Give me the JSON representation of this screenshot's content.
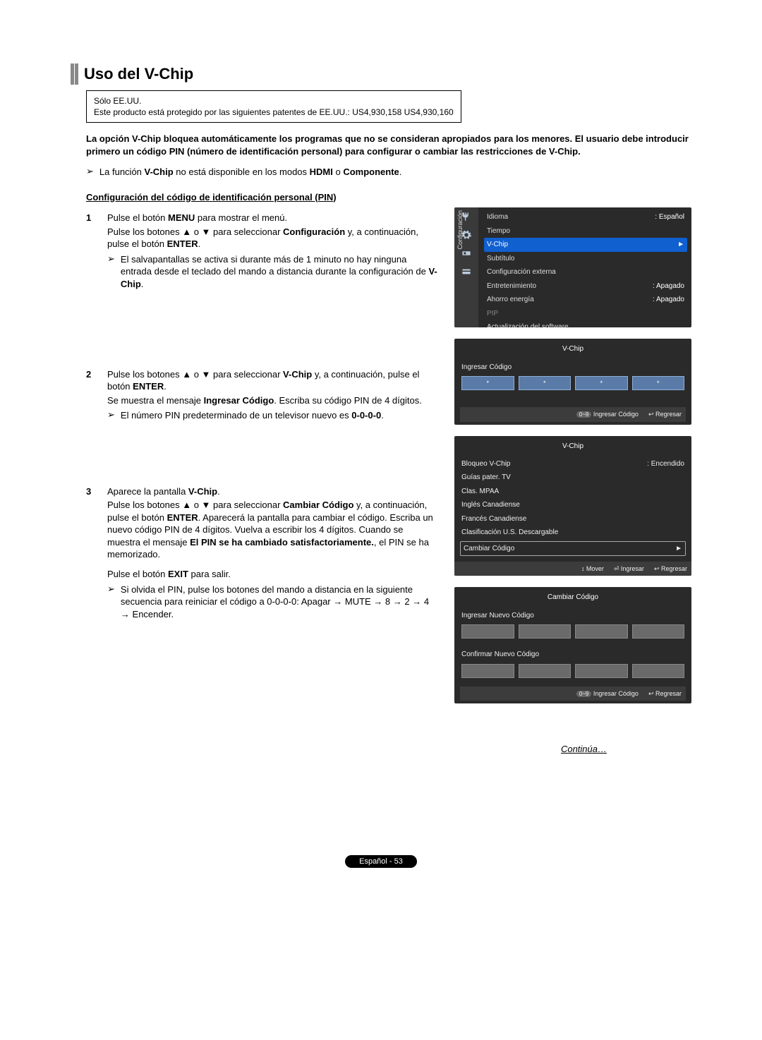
{
  "header": {
    "title": "Uso del V-Chip"
  },
  "patent_box": {
    "line1": "Sólo EE.UU.",
    "line2": "Este producto está protegido por las siguientes patentes de EE.UU.: US4,930,158 US4,930,160"
  },
  "intro": "La opción V-Chip bloquea automáticamente los programas que no se consideran apropiados para los menores. El usuario debe introducir primero un código PIN (número de identificación personal) para configurar o cambiar las restricciones de V-Chip.",
  "availability_note": {
    "prefix": "La función ",
    "vchip": "V-Chip",
    "mid": " no está disponible en los modos ",
    "hdmi": "HDMI",
    "or": " o ",
    "componente": "Componente",
    "suffix": "."
  },
  "section_heading": "Configuración del código de identificación personal (PIN)",
  "steps": {
    "s1": {
      "num": "1",
      "p1a": "Pulse el botón ",
      "p1b": "MENU",
      "p1c": " para mostrar el menú.",
      "p2a": "Pulse los botones ▲ o ▼ para seleccionar ",
      "p2b": "Configuración",
      "p2c": " y,  a continuación, pulse el botón ",
      "p2d": "ENTER",
      "p2e": ".",
      "sub1a": "El salvapantallas se activa si durante más de 1 minuto no hay ninguna entrada desde el teclado del mando a distancia durante la configuración de ",
      "sub1b": "V-Chip",
      "sub1c": "."
    },
    "s2": {
      "num": "2",
      "p1a": "Pulse los botones ▲ o ▼ para seleccionar ",
      "p1b": "V-Chip",
      "p1c": " y, a continuación, pulse el botón ",
      "p1d": "ENTER",
      "p1e": ".",
      "p2a": "Se muestra el mensaje ",
      "p2b": "Ingresar Código",
      "p2c": ". Escriba su código PIN de 4 dígitos.",
      "sub1a": "El número PIN predeterminado de un televisor nuevo es ",
      "sub1b": "0-0-0-0",
      "sub1c": "."
    },
    "s3": {
      "num": "3",
      "p1a": "Aparece la pantalla ",
      "p1b": "V-Chip",
      "p1c": ".",
      "p2a": "Pulse los botones ▲ o ▼ para seleccionar ",
      "p2b": "Cambiar Código",
      "p2c": " y, a continuación, pulse el botón ",
      "p2d": "ENTER",
      "p2e": ". Aparecerá la pantalla para cambiar el código. Escriba un nuevo código PIN de 4 dígitos. Vuelva a escribir los 4 dígitos. Cuando se muestra el mensaje ",
      "p2f": "El PIN se ha cambiado satisfactoriamente.",
      "p2g": ", el PIN se ha memorizado.",
      "p3a": "Pulse el botón ",
      "p3b": "EXIT",
      "p3c": " para salir.",
      "sub1": "Si olvida el PIN, pulse los botones del mando a distancia en la siguiente secuencia para reiniciar el código a 0-0-0-0: Apagar → MUTE → 8 → 2 → 4 → Encender."
    }
  },
  "osd1": {
    "side_label": "Configuración",
    "rows": [
      {
        "label": "Idioma",
        "value": ": Español"
      },
      {
        "label": "Tiempo",
        "value": ""
      },
      {
        "label": "V-Chip",
        "value": "►",
        "selected": true
      },
      {
        "label": "Subtítulo",
        "value": ""
      },
      {
        "label": "Configuración externa",
        "value": ""
      },
      {
        "label": "Entretenimiento",
        "value": ": Apagado"
      },
      {
        "label": "Ahorro energía",
        "value": ": Apagado"
      },
      {
        "label": "PIP",
        "value": "",
        "dim": true
      },
      {
        "label": "Actualización del software",
        "value": ""
      }
    ]
  },
  "osd2": {
    "title": "V-Chip",
    "enter_label": "Ingresar Código",
    "star": "*",
    "footer_code": "0~9 Ingresar Código",
    "footer_return": "↩ Regresar"
  },
  "osd3": {
    "title": "V-Chip",
    "rows": [
      {
        "label": "Bloqueo V-Chip",
        "value": ": Encendido"
      },
      {
        "label": "Guías pater. TV",
        "value": ""
      },
      {
        "label": "Clas. MPAA",
        "value": ""
      },
      {
        "label": "Inglés Canadiense",
        "value": ""
      },
      {
        "label": "Francés Canadiense",
        "value": ""
      },
      {
        "label": "Clasificación U.S. Descargable",
        "value": ""
      }
    ],
    "outlined_label": "Cambiar Código",
    "outlined_arrow": "►",
    "footer_move": "↕ Mover",
    "footer_enter": "⏎ Ingresar",
    "footer_return": "↩ Regresar"
  },
  "osd4": {
    "title": "Cambiar Código",
    "new_label": "Ingresar Nuevo Código",
    "confirm_label": "Confirmar Nuevo Código",
    "footer_code": "0~9 Ingresar Código",
    "footer_return": "↩ Regresar"
  },
  "continues": "Continúa…",
  "page_footer": "Español - 53"
}
